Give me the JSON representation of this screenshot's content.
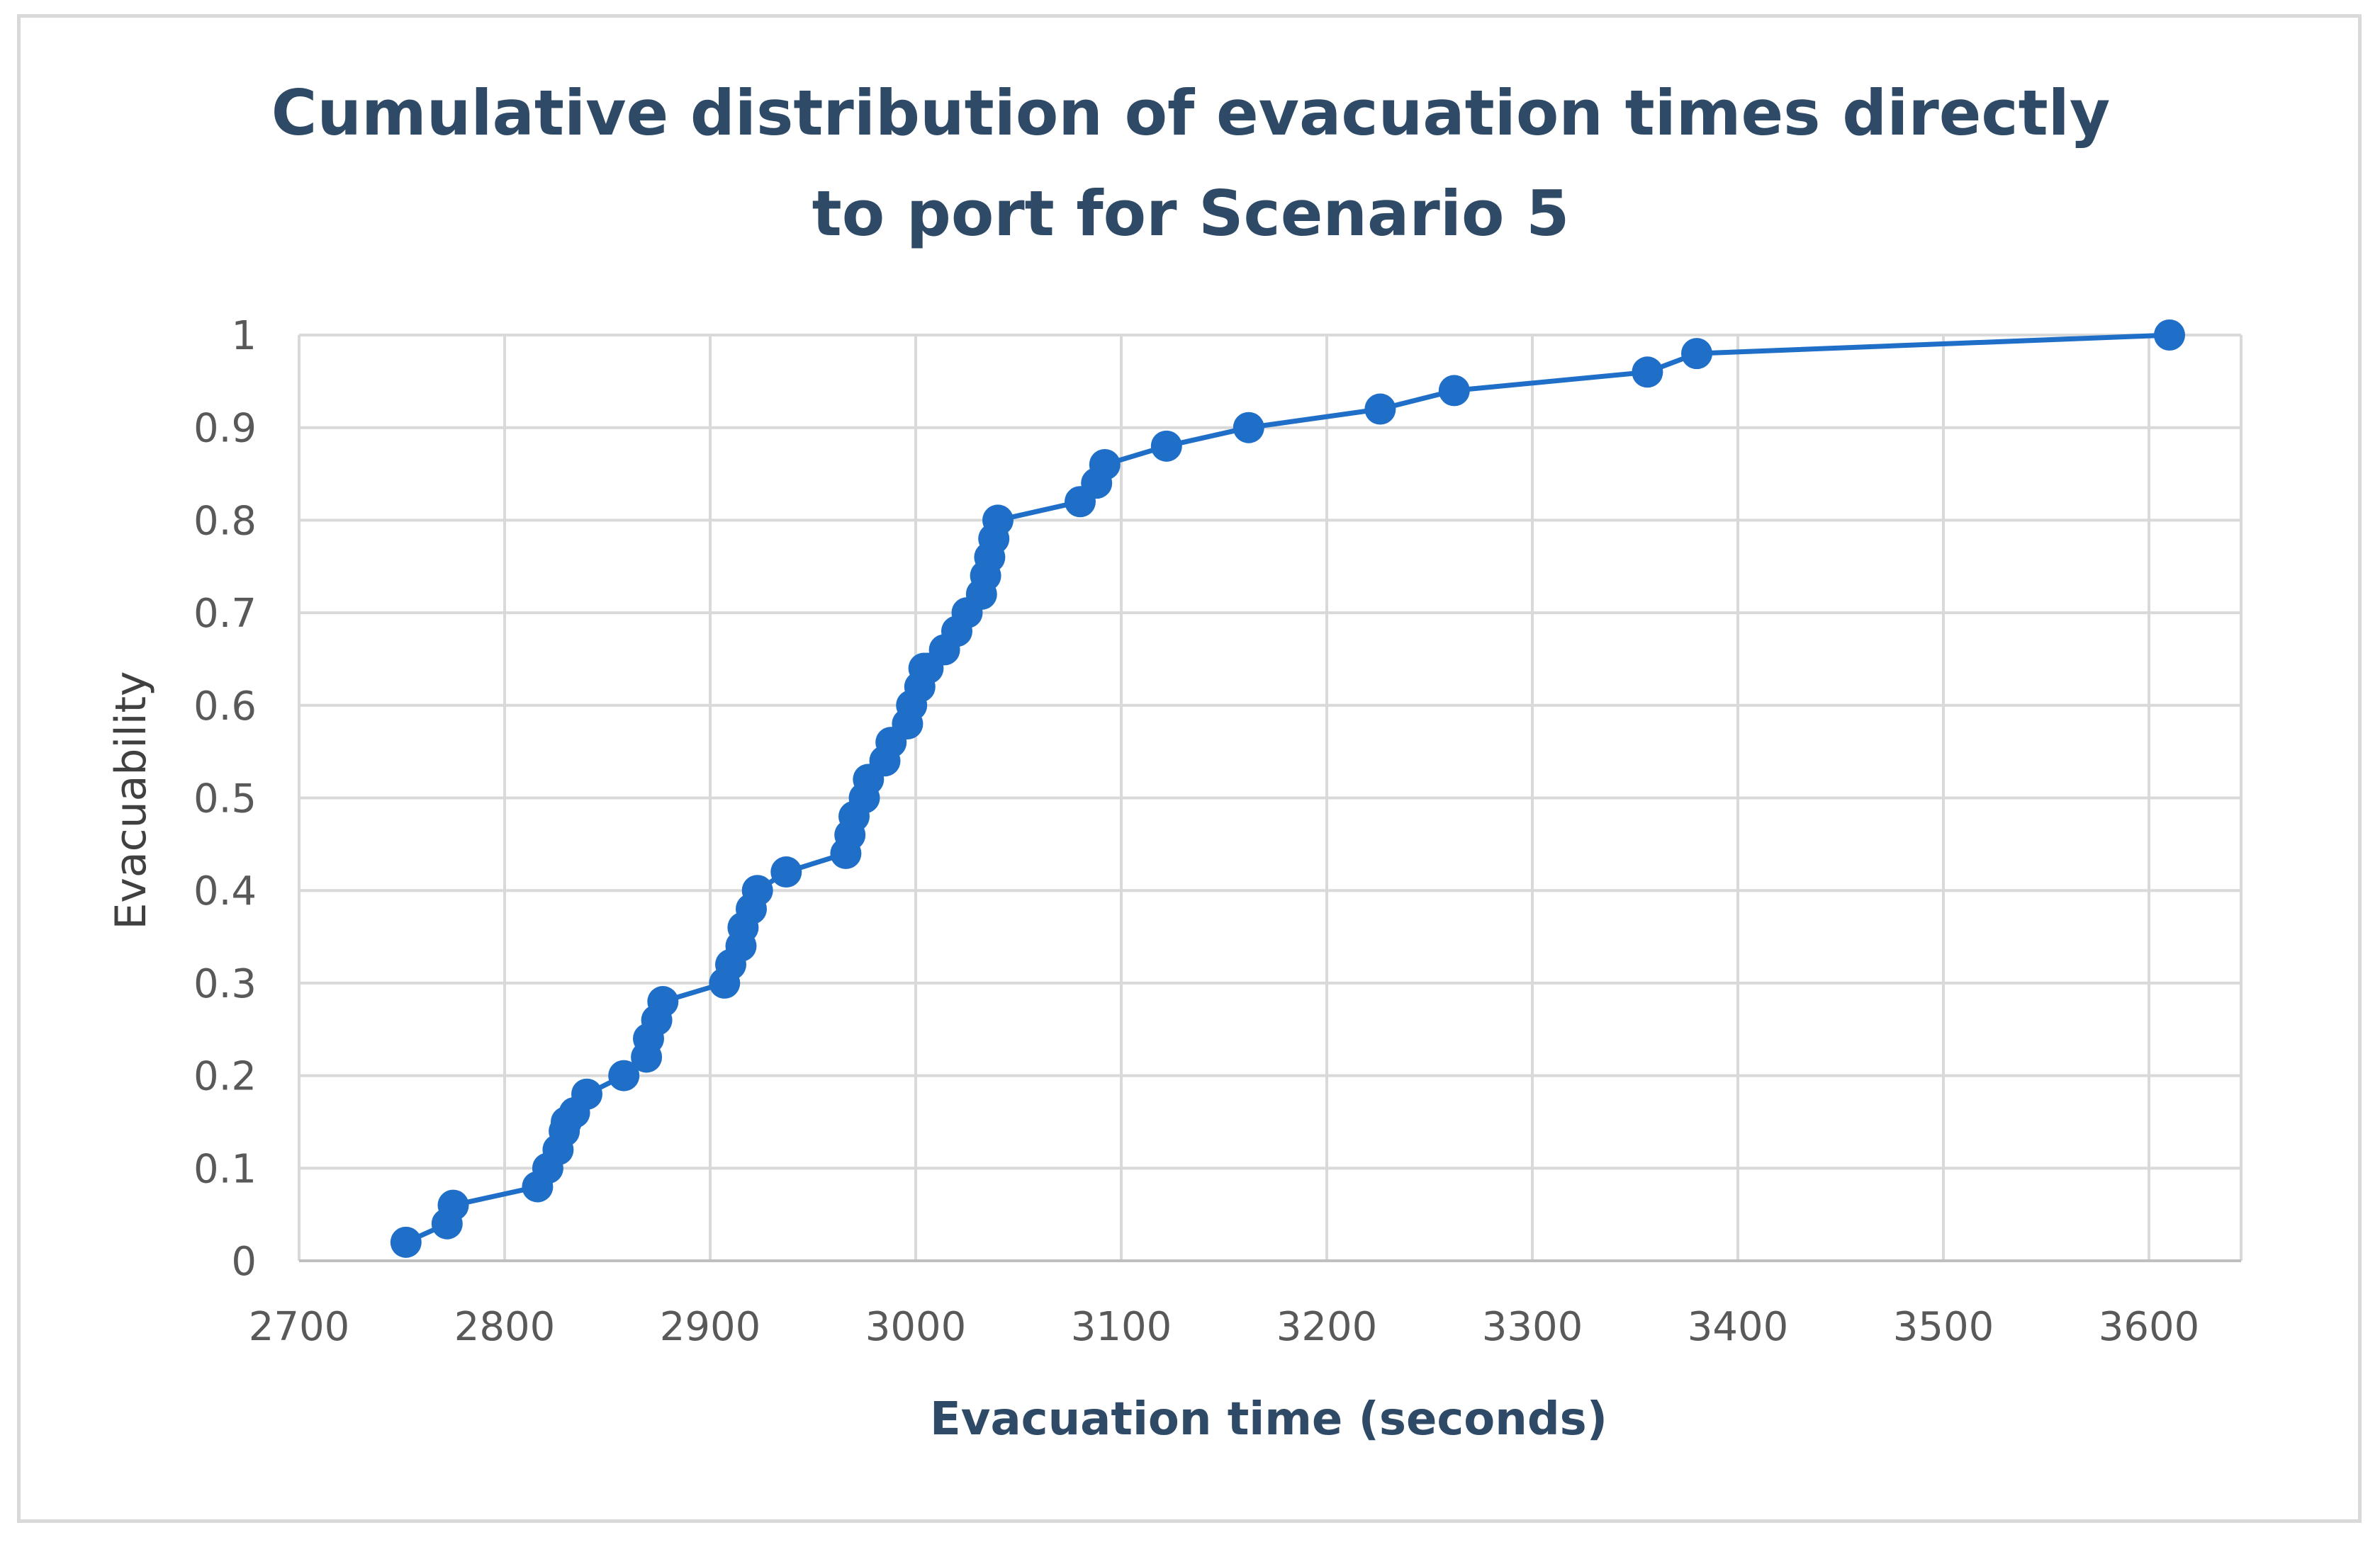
{
  "chart_data": {
    "type": "scatter",
    "title_lines": [
      "Cumulative distribution of evacuation times directly",
      "to port for Scenario 5"
    ],
    "xlabel": "Evacuation time (seconds)",
    "ylabel": "Evacuability",
    "xlim": [
      2700,
      3650
    ],
    "ylim": [
      0,
      1
    ],
    "x_ticks": [
      2700,
      2800,
      2900,
      3000,
      3100,
      3200,
      3300,
      3400,
      3500,
      3600
    ],
    "y_ticks": [
      0,
      0.1,
      0.2,
      0.3,
      0.4,
      0.5,
      0.6,
      0.7,
      0.8,
      0.9,
      1
    ],
    "y_tick_labels": [
      "0",
      "0.1",
      "0.2",
      "0.3",
      "0.4",
      "0.5",
      "0.6",
      "0.7",
      "0.8",
      "0.9",
      "1"
    ],
    "grid": true,
    "legend": "none",
    "series": [
      {
        "name": "Evacuability",
        "color": "#1f6fc8",
        "line": true,
        "markers": "circle",
        "x": [
          2752,
          2772,
          2775,
          2816,
          2821,
          2826,
          2829,
          2830,
          2834,
          2840,
          2858,
          2869,
          2870,
          2874,
          2877,
          2907,
          2910,
          2915,
          2916,
          2920,
          2923,
          2937,
          2966,
          2968,
          2970,
          2975,
          2977,
          2985,
          2988,
          2996,
          2998,
          3002,
          3004,
          3006,
          3014,
          3020,
          3025,
          3032,
          3034,
          3036,
          3038,
          3040,
          3080,
          3088,
          3092,
          3122,
          3162,
          3226,
          3262,
          3356,
          3380,
          3610
        ],
        "y": [
          0.02,
          0.04,
          0.06,
          0.08,
          0.1,
          0.12,
          0.14,
          0.15,
          0.16,
          0.18,
          0.2,
          0.22,
          0.24,
          0.26,
          0.28,
          0.3,
          0.32,
          0.34,
          0.36,
          0.38,
          0.4,
          0.42,
          0.44,
          0.46,
          0.48,
          0.5,
          0.52,
          0.54,
          0.56,
          0.58,
          0.6,
          0.62,
          0.64,
          0.64,
          0.66,
          0.68,
          0.7,
          0.72,
          0.74,
          0.76,
          0.78,
          0.8,
          0.82,
          0.84,
          0.86,
          0.88,
          0.9,
          0.92,
          0.94,
          0.96,
          0.98,
          1.0
        ]
      }
    ]
  }
}
